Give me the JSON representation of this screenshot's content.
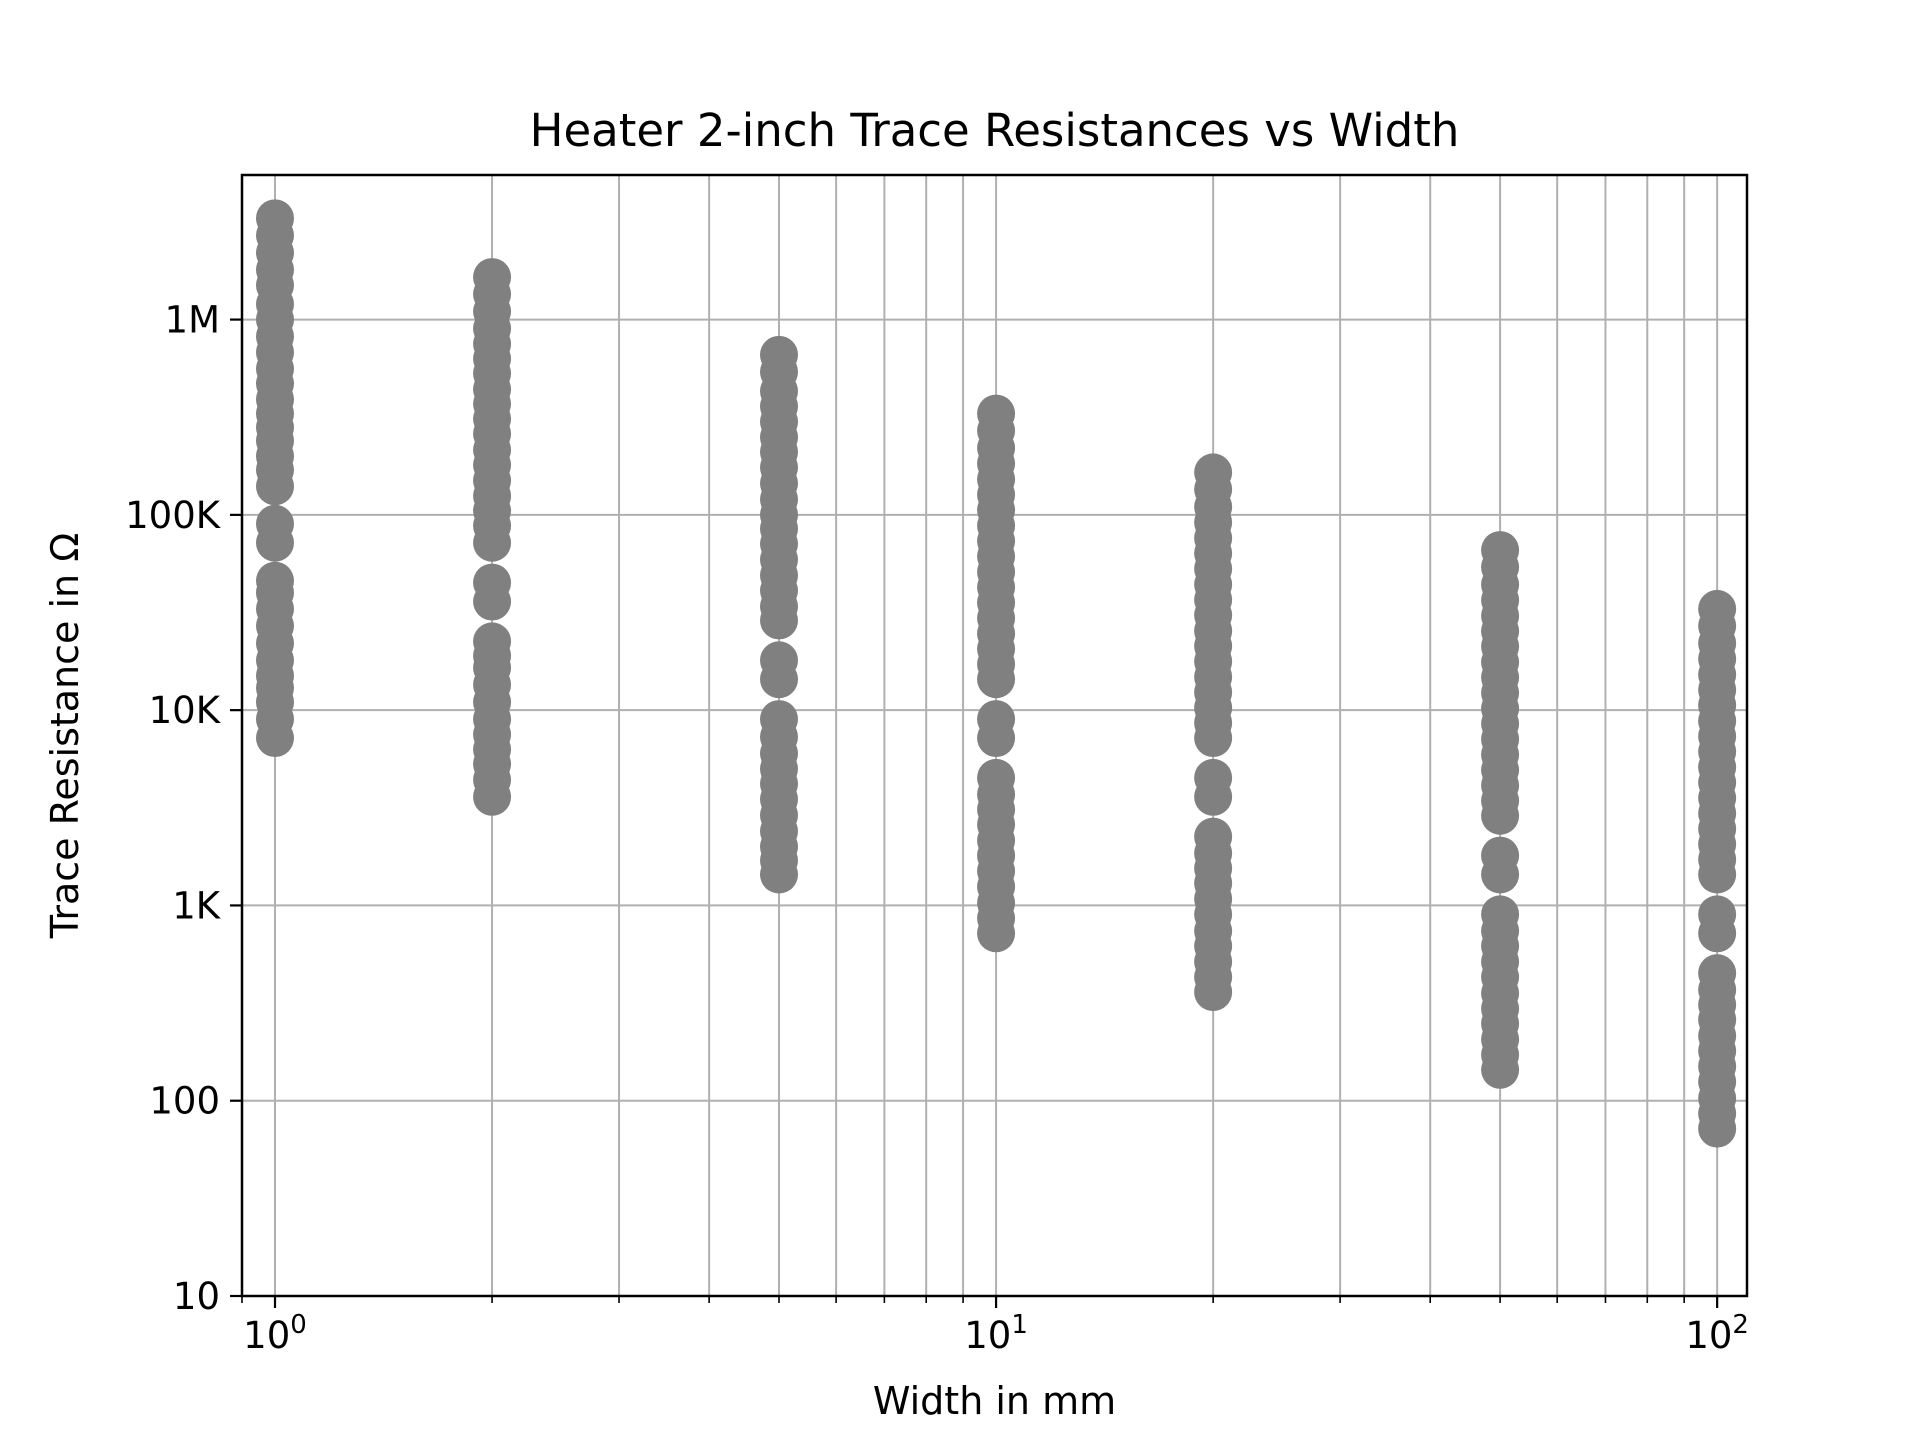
{
  "chart_data": {
    "type": "scatter",
    "title": "Heater 2-inch Trace Resistances vs Width",
    "xlabel": "Width in mm",
    "ylabel": "Trace Resistance in Ω",
    "xscale": "log",
    "yscale": "log",
    "xlim": [
      0.9,
      110
    ],
    "ylim": [
      10,
      5500000
    ],
    "grid": true,
    "marker_color": "#808080",
    "x_ticks": [
      {
        "value": 1,
        "base": "10",
        "exp": "0"
      },
      {
        "value": 10,
        "base": "10",
        "exp": "1"
      },
      {
        "value": 100,
        "base": "10",
        "exp": "2"
      }
    ],
    "y_ticks": [
      {
        "value": 10,
        "label": "10"
      },
      {
        "value": 100,
        "label": "100"
      },
      {
        "value": 1000,
        "label": "1K"
      },
      {
        "value": 10000,
        "label": "10K"
      },
      {
        "value": 100000,
        "label": "100K"
      },
      {
        "value": 1000000,
        "label": "1M"
      }
    ],
    "series": [
      {
        "x": 1,
        "y": [
          7200,
          9000,
          11000,
          13000,
          15000,
          18000,
          22000,
          27000,
          33000,
          40000,
          46000,
          72000,
          90000,
          140000,
          170000,
          200000,
          240000,
          280000,
          330000,
          390000,
          470000,
          560000,
          680000,
          820000,
          1000000,
          1200000,
          1500000,
          1800000,
          2200000,
          2700000,
          3300000
        ]
      },
      {
        "x": 2,
        "y": [
          3600,
          4400,
          5300,
          6300,
          7500,
          9000,
          11000,
          13500,
          16500,
          19000,
          22500,
          36000,
          45000,
          72000,
          88000,
          105000,
          125000,
          150000,
          180000,
          215000,
          260000,
          310000,
          370000,
          440000,
          530000,
          630000,
          750000,
          900000,
          1100000,
          1350000,
          1650000
        ]
      },
      {
        "x": 5,
        "y": [
          1440,
          1700,
          2000,
          2400,
          2900,
          3500,
          4200,
          5000,
          6000,
          7300,
          9000,
          14400,
          18000,
          28800,
          34000,
          41000,
          49000,
          59000,
          71000,
          85000,
          100000,
          120000,
          145000,
          175000,
          210000,
          250000,
          300000,
          360000,
          430000,
          540000,
          660000
        ]
      },
      {
        "x": 10,
        "y": [
          720,
          860,
          1030,
          1250,
          1500,
          1800,
          2150,
          2600,
          3100,
          3700,
          4500,
          7200,
          9000,
          14400,
          17200,
          20600,
          24700,
          29600,
          35500,
          42600,
          51000,
          61300,
          73500,
          88000,
          106000,
          127000,
          152000,
          183000,
          220000,
          270000,
          330000
        ]
      },
      {
        "x": 20,
        "y": [
          360,
          430,
          515,
          620,
          740,
          900,
          1080,
          1300,
          1550,
          1850,
          2250,
          3600,
          4500,
          7200,
          8600,
          10300,
          12350,
          14800,
          17750,
          21300,
          25500,
          30650,
          36750,
          44000,
          53000,
          63500,
          76000,
          91500,
          110000,
          135000,
          165000
        ]
      },
      {
        "x": 50,
        "y": [
          144,
          172,
          206,
          248,
          296,
          355,
          430,
          515,
          620,
          740,
          900,
          1440,
          1800,
          2880,
          3440,
          4120,
          4940,
          5920,
          7100,
          8520,
          10200,
          12260,
          14700,
          17600,
          21200,
          25400,
          30400,
          36600,
          44000,
          54000,
          66000
        ]
      },
      {
        "x": 100,
        "y": [
          72,
          86,
          103,
          125,
          150,
          180,
          215,
          260,
          310,
          370,
          450,
          720,
          900,
          1440,
          1720,
          2060,
          2470,
          2960,
          3550,
          4260,
          5100,
          6130,
          7350,
          8800,
          10600,
          12700,
          15200,
          18300,
          22000,
          27000,
          33000
        ]
      }
    ]
  }
}
